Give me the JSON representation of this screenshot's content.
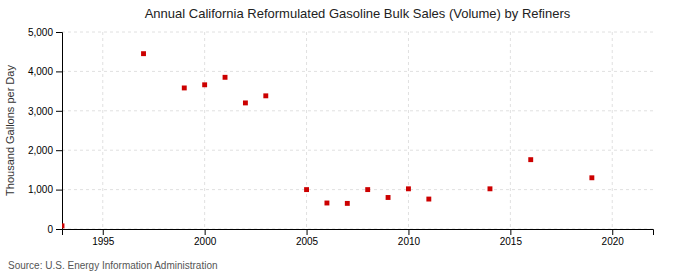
{
  "chart_data": {
    "type": "scatter",
    "title": "Annual California Reformulated Gasoline Bulk Sales (Volume) by Refiners",
    "ylabel": "Thousand Gallons per Day",
    "annotations": [
      "Source: U.S. Energy Information Administration"
    ],
    "x": [
      1993,
      1997,
      1999,
      2000,
      2001,
      2002,
      2003,
      2005,
      2006,
      2007,
      2008,
      2009,
      2010,
      2011,
      2014,
      2016,
      2019
    ],
    "values": [
      80,
      4450,
      3580,
      3660,
      3850,
      3200,
      3380,
      1000,
      660,
      650,
      1000,
      800,
      1020,
      760,
      1020,
      1760,
      1300
    ],
    "color": "#cc0000",
    "marker": "square",
    "xlim": [
      1993,
      2022
    ],
    "xticks": [
      1995,
      2000,
      2005,
      2010,
      2015,
      2020
    ],
    "ylim": [
      0,
      5000
    ],
    "yticks": [
      0,
      {
        "value": 1000,
        "label": "1,000"
      },
      {
        "value": 2000,
        "label": "2,000"
      },
      {
        "value": 3000,
        "label": "3,000"
      },
      {
        "value": 4000,
        "label": "4,000"
      },
      {
        "value": 5000,
        "label": "5,000"
      }
    ],
    "grid": true
  }
}
